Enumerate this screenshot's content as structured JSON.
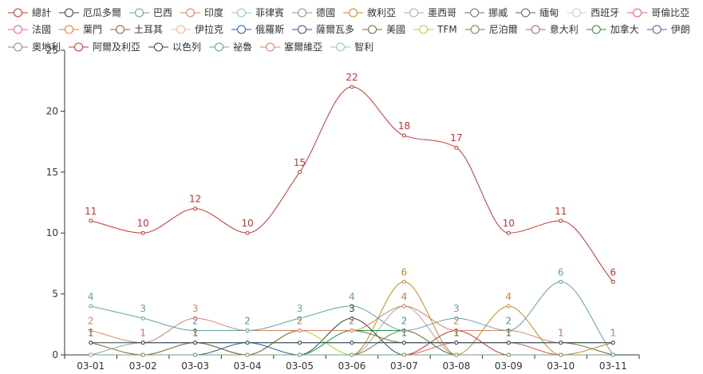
{
  "chart_data": {
    "type": "line",
    "smooth": true,
    "x": [
      "03-01",
      "03-02",
      "03-03",
      "03-04",
      "03-05",
      "03-06",
      "03-07",
      "03-08",
      "03-09",
      "03-10",
      "03-11"
    ],
    "ylim": [
      0,
      25
    ],
    "yticks": [
      0,
      5,
      10,
      15,
      20,
      25
    ],
    "legend_position": "top",
    "grid": false,
    "series": [
      {
        "name": "總計",
        "color": "#c23531",
        "labels": true,
        "values": [
          11,
          10,
          12,
          10,
          15,
          22,
          18,
          17,
          10,
          11,
          6
        ]
      },
      {
        "name": "厄瓜多爾",
        "color": "#2f4554",
        "labels": false,
        "values": [
          1,
          1,
          1,
          1,
          1,
          1,
          1,
          1,
          1,
          1,
          1
        ]
      },
      {
        "name": "巴西",
        "color": "#61a0a8",
        "labels": true,
        "values": [
          4,
          3,
          2,
          2,
          3,
          4,
          2,
          3,
          2,
          6,
          0
        ]
      },
      {
        "name": "印度",
        "color": "#d48265",
        "labels": true,
        "values": [
          2,
          1,
          3,
          2,
          2,
          2,
          4,
          2,
          2,
          1,
          1
        ]
      },
      {
        "name": "菲律賓",
        "color": "#91c7ae",
        "labels": false,
        "values": [
          0,
          1,
          1,
          1,
          1,
          1,
          1,
          1,
          1,
          1,
          1
        ]
      },
      {
        "name": "德國",
        "color": "#749f83",
        "labels": false,
        "values": [
          0,
          0,
          0,
          0,
          0,
          0,
          0,
          0,
          0,
          0,
          0
        ]
      },
      {
        "name": "敘利亞",
        "color": "#ca8622",
        "labels": false,
        "values": [
          0,
          0,
          0,
          0,
          0,
          0,
          0,
          0,
          0,
          0,
          0
        ]
      },
      {
        "name": "墨西哥",
        "color": "#bda29a",
        "labels": false,
        "values": [
          0,
          0,
          0,
          0,
          0,
          0,
          0,
          0,
          0,
          0,
          0
        ]
      },
      {
        "name": "挪威",
        "color": "#6e7074",
        "labels": false,
        "values": [
          0,
          0,
          0,
          0,
          0,
          0,
          0,
          0,
          0,
          0,
          0
        ]
      },
      {
        "name": "緬甸",
        "color": "#546570",
        "labels": false,
        "values": [
          0,
          0,
          0,
          0,
          0,
          0,
          0,
          0,
          0,
          0,
          0
        ]
      },
      {
        "name": "西班牙",
        "color": "#c4ccd3",
        "labels": false,
        "values": [
          0,
          0,
          0,
          0,
          0,
          0,
          0,
          0,
          0,
          0,
          0
        ]
      },
      {
        "name": "哥倫比亞",
        "color": "#f05b72",
        "labels": false,
        "values": [
          0,
          0,
          0,
          0,
          0,
          0,
          0,
          0,
          0,
          0,
          0
        ]
      },
      {
        "name": "法國",
        "color": "#ef5b9c",
        "labels": false,
        "values": [
          0,
          0,
          0,
          0,
          0,
          0,
          0,
          0,
          0,
          0,
          0
        ]
      },
      {
        "name": "葉門",
        "color": "#f47920",
        "labels": false,
        "values": [
          0,
          0,
          0,
          0,
          0,
          0,
          0,
          0,
          0,
          0,
          0
        ]
      },
      {
        "name": "土耳其",
        "color": "#905a3d",
        "labels": false,
        "values": [
          0,
          0,
          0,
          0,
          0,
          0,
          0,
          0,
          0,
          0,
          0
        ]
      },
      {
        "name": "伊拉克",
        "color": "#fab27b",
        "labels": false,
        "values": [
          0,
          0,
          0,
          0,
          0,
          0,
          0,
          0,
          0,
          0,
          0
        ]
      },
      {
        "name": "俄羅斯",
        "color": "#2a5caa",
        "labels": false,
        "values": [
          0,
          0,
          0,
          1,
          0,
          0,
          0,
          0,
          0,
          0,
          0
        ]
      },
      {
        "name": "薩爾瓦多",
        "color": "#444693",
        "labels": false,
        "values": [
          0,
          0,
          0,
          0,
          0,
          0,
          0,
          0,
          0,
          0,
          0
        ]
      },
      {
        "name": "美國",
        "color": "#726930",
        "labels": true,
        "values": [
          1,
          0,
          1,
          0,
          2,
          2,
          1,
          1,
          1,
          1,
          0
        ]
      },
      {
        "name": "TFM",
        "color": "#b2d235",
        "labels": false,
        "values": [
          0,
          0,
          0,
          0,
          2,
          0,
          0,
          0,
          0,
          0,
          0
        ]
      },
      {
        "name": "尼泊爾",
        "color": "#6d8346",
        "labels": false,
        "values": [
          0,
          0,
          0,
          0,
          0,
          0,
          2,
          0,
          0,
          0,
          0
        ]
      },
      {
        "name": "意大利",
        "color": "#ac6767",
        "labels": false,
        "values": [
          0,
          0,
          0,
          0,
          0,
          0,
          0,
          0,
          0,
          0,
          0
        ]
      },
      {
        "name": "加拿大",
        "color": "#1d953f",
        "labels": true,
        "values": [
          0,
          0,
          0,
          0,
          0,
          2,
          2,
          0,
          0,
          0,
          0
        ]
      },
      {
        "name": "伊朗",
        "color": "#6950a1",
        "labels": false,
        "values": [
          0,
          0,
          0,
          0,
          0,
          0,
          0,
          0,
          0,
          0,
          0
        ]
      },
      {
        "name": "奧地利",
        "color": "#918597",
        "labels": false,
        "values": [
          0,
          0,
          0,
          0,
          0,
          0,
          0,
          0,
          0,
          0,
          0
        ]
      },
      {
        "name": "阿爾及利亞",
        "color": "#c23531",
        "labels": false,
        "values": [
          0,
          0,
          0,
          0,
          0,
          0,
          0,
          2,
          0,
          0,
          0
        ]
      },
      {
        "name": "以色列",
        "color": "#2f4554",
        "labels": true,
        "values": [
          0,
          0,
          0,
          0,
          0,
          3,
          0,
          0,
          0,
          0,
          0
        ]
      },
      {
        "name": "祕魯",
        "color": "#61a0a8",
        "labels": false,
        "values": [
          0,
          0,
          0,
          0,
          0,
          0,
          0,
          0,
          0,
          0,
          0
        ]
      },
      {
        "name": "塞爾維亞",
        "color": "#d48265",
        "labels": false,
        "values": [
          0,
          0,
          0,
          0,
          0,
          0,
          0,
          0,
          0,
          0,
          0
        ]
      },
      {
        "name": "智利",
        "color": "#91c7ae",
        "labels": false,
        "values": [
          0,
          0,
          0,
          0,
          0,
          0,
          0,
          0,
          0,
          0,
          0
        ]
      },
      {
        "name": "",
        "color": "#ca8622",
        "labels": true,
        "values": [
          0,
          0,
          0,
          0,
          0,
          0,
          6,
          0,
          4,
          0,
          1
        ]
      },
      {
        "name": "",
        "color": "#bda29a",
        "labels": true,
        "values": [
          0,
          0,
          0,
          0,
          0,
          0,
          4,
          0,
          0,
          0,
          0
        ]
      },
      {
        "name": "",
        "color": "#dd6b66",
        "labels": true,
        "values": [
          0,
          1,
          1,
          0,
          0,
          0,
          0,
          1,
          1,
          0,
          0
        ]
      },
      {
        "name": "",
        "color": "#e098c7",
        "labels": false,
        "values": [
          0,
          1,
          1,
          1,
          1,
          1,
          1,
          1,
          1,
          0,
          0
        ]
      }
    ]
  }
}
